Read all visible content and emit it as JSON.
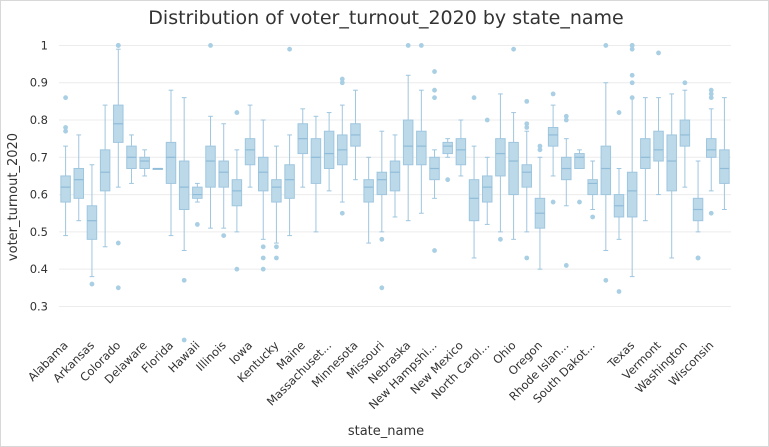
{
  "chart_data": {
    "type": "box",
    "title": "Distribution of voter_turnout_2020 by state_name",
    "xlabel": "state_name",
    "ylabel": "voter_turnout_2020",
    "ylim": [
      0.21,
      1.02
    ],
    "yticks": [
      0.3,
      0.4,
      0.5,
      0.6,
      0.7,
      0.8,
      0.9,
      1
    ],
    "ytick_labels": [
      "0.3",
      "0.4",
      "0.5",
      "0.6",
      "0.7",
      "0.8",
      "0.9",
      "1"
    ],
    "grid": true,
    "colors": {
      "box_fill": "#bcd9ea",
      "box_stroke": "#9fc6df",
      "outlier": "#a9cfe4"
    },
    "visible_tick_labels": [
      "Alabama",
      "Arkansas",
      "Colorado",
      "Delaware",
      "Florida",
      "Hawaii",
      "Illinois",
      "Iowa",
      "Kentucky",
      "Maine",
      "Massachuset...",
      "Minnesota",
      "Missouri",
      "Nebraska",
      "New Hampshi...",
      "New Mexico",
      "North Carol...",
      "Ohio",
      "Oregon",
      "Rhode Islan...",
      "South Dakot...",
      "Texas",
      "Vermont",
      "Washington",
      "Wisconsin"
    ],
    "boxes": [
      {
        "index": 0,
        "label": "Alabama",
        "min": 0.49,
        "q1": 0.58,
        "median": 0.62,
        "q3": 0.65,
        "max": 0.73,
        "outliers": [
          0.86,
          0.78,
          0.77
        ]
      },
      {
        "index": 1,
        "label": "",
        "min": 0.53,
        "q1": 0.59,
        "median": 0.64,
        "q3": 0.67,
        "max": 0.76,
        "outliers": []
      },
      {
        "index": 2,
        "label": "Arkansas",
        "min": 0.38,
        "q1": 0.48,
        "median": 0.53,
        "q3": 0.57,
        "max": 0.68,
        "outliers": [
          0.36
        ]
      },
      {
        "index": 3,
        "label": "",
        "min": 0.46,
        "q1": 0.61,
        "median": 0.66,
        "q3": 0.72,
        "max": 0.84,
        "outliers": []
      },
      {
        "index": 4,
        "label": "Colorado",
        "min": 0.62,
        "q1": 0.74,
        "median": 0.79,
        "q3": 0.84,
        "max": 0.99,
        "outliers": [
          1.0,
          1.0,
          0.47,
          0.35
        ]
      },
      {
        "index": 5,
        "label": "",
        "min": 0.63,
        "q1": 0.67,
        "median": 0.7,
        "q3": 0.73,
        "max": 0.76,
        "outliers": []
      },
      {
        "index": 6,
        "label": "Delaware",
        "min": 0.65,
        "q1": 0.67,
        "median": 0.69,
        "q3": 0.7,
        "max": 0.72,
        "outliers": []
      },
      {
        "index": 7,
        "label": "",
        "min": 0.67,
        "q1": 0.67,
        "median": 0.67,
        "q3": 0.67,
        "max": 0.67,
        "outliers": []
      },
      {
        "index": 8,
        "label": "Florida",
        "min": 0.49,
        "q1": 0.63,
        "median": 0.7,
        "q3": 0.74,
        "max": 0.88,
        "outliers": []
      },
      {
        "index": 9,
        "label": "",
        "min": 0.45,
        "q1": 0.56,
        "median": 0.62,
        "q3": 0.69,
        "max": 0.86,
        "outliers": [
          0.37,
          0.21
        ]
      },
      {
        "index": 10,
        "label": "Hawaii",
        "min": 0.58,
        "q1": 0.59,
        "median": 0.6,
        "q3": 0.62,
        "max": 0.63,
        "outliers": [
          0.52
        ]
      },
      {
        "index": 11,
        "label": "",
        "min": 0.51,
        "q1": 0.62,
        "median": 0.69,
        "q3": 0.73,
        "max": 0.81,
        "outliers": [
          1.0
        ]
      },
      {
        "index": 12,
        "label": "Illinois",
        "min": 0.51,
        "q1": 0.62,
        "median": 0.66,
        "q3": 0.69,
        "max": 0.79,
        "outliers": [
          0.49
        ]
      },
      {
        "index": 13,
        "label": "",
        "min": 0.5,
        "q1": 0.57,
        "median": 0.61,
        "q3": 0.64,
        "max": 0.72,
        "outliers": [
          0.82,
          0.4
        ]
      },
      {
        "index": 14,
        "label": "Iowa",
        "min": 0.62,
        "q1": 0.68,
        "median": 0.72,
        "q3": 0.75,
        "max": 0.84,
        "outliers": []
      },
      {
        "index": 15,
        "label": "",
        "min": 0.48,
        "q1": 0.61,
        "median": 0.66,
        "q3": 0.7,
        "max": 0.8,
        "outliers": [
          0.46,
          0.43,
          0.4
        ]
      },
      {
        "index": 16,
        "label": "Kentucky",
        "min": 0.47,
        "q1": 0.58,
        "median": 0.62,
        "q3": 0.64,
        "max": 0.73,
        "outliers": [
          0.46,
          0.43
        ]
      },
      {
        "index": 17,
        "label": "",
        "min": 0.49,
        "q1": 0.59,
        "median": 0.64,
        "q3": 0.68,
        "max": 0.76,
        "outliers": [
          0.99
        ]
      },
      {
        "index": 18,
        "label": "Maine",
        "min": 0.62,
        "q1": 0.71,
        "median": 0.75,
        "q3": 0.79,
        "max": 0.83,
        "outliers": []
      },
      {
        "index": 19,
        "label": "",
        "min": 0.5,
        "q1": 0.63,
        "median": 0.7,
        "q3": 0.75,
        "max": 0.81,
        "outliers": []
      },
      {
        "index": 20,
        "label": "Massachuset...",
        "min": 0.61,
        "q1": 0.67,
        "median": 0.71,
        "q3": 0.77,
        "max": 0.82,
        "outliers": []
      },
      {
        "index": 21,
        "label": "",
        "min": 0.58,
        "q1": 0.68,
        "median": 0.72,
        "q3": 0.76,
        "max": 0.84,
        "outliers": [
          0.91,
          0.9,
          0.55
        ]
      },
      {
        "index": 22,
        "label": "Minnesota",
        "min": 0.64,
        "q1": 0.73,
        "median": 0.76,
        "q3": 0.79,
        "max": 0.88,
        "outliers": []
      },
      {
        "index": 23,
        "label": "",
        "min": 0.47,
        "q1": 0.58,
        "median": 0.62,
        "q3": 0.64,
        "max": 0.7,
        "outliers": []
      },
      {
        "index": 24,
        "label": "Missouri",
        "min": 0.5,
        "q1": 0.6,
        "median": 0.64,
        "q3": 0.66,
        "max": 0.77,
        "outliers": [
          0.48,
          0.35
        ]
      },
      {
        "index": 25,
        "label": "",
        "min": 0.54,
        "q1": 0.61,
        "median": 0.66,
        "q3": 0.69,
        "max": 0.76,
        "outliers": []
      },
      {
        "index": 26,
        "label": "Nebraska",
        "min": 0.53,
        "q1": 0.68,
        "median": 0.73,
        "q3": 0.8,
        "max": 0.92,
        "outliers": [
          1.0
        ]
      },
      {
        "index": 27,
        "label": "",
        "min": 0.55,
        "q1": 0.68,
        "median": 0.73,
        "q3": 0.77,
        "max": 0.88,
        "outliers": [
          1.0
        ]
      },
      {
        "index": 28,
        "label": "New Hampshi...",
        "min": 0.59,
        "q1": 0.64,
        "median": 0.67,
        "q3": 0.7,
        "max": 0.72,
        "outliers": [
          0.93,
          0.88,
          0.86,
          0.45
        ]
      },
      {
        "index": 29,
        "label": "",
        "min": 0.7,
        "q1": 0.71,
        "median": 0.73,
        "q3": 0.74,
        "max": 0.75,
        "outliers": [
          0.64
        ]
      },
      {
        "index": 30,
        "label": "New Mexico",
        "min": 0.65,
        "q1": 0.68,
        "median": 0.72,
        "q3": 0.75,
        "max": 0.8,
        "outliers": []
      },
      {
        "index": 31,
        "label": "",
        "min": 0.43,
        "q1": 0.53,
        "median": 0.59,
        "q3": 0.64,
        "max": 0.73,
        "outliers": [
          0.86
        ]
      },
      {
        "index": 32,
        "label": "North Carol...",
        "min": 0.52,
        "q1": 0.58,
        "median": 0.62,
        "q3": 0.65,
        "max": 0.7,
        "outliers": [
          0.8
        ]
      },
      {
        "index": 33,
        "label": "",
        "min": 0.5,
        "q1": 0.65,
        "median": 0.71,
        "q3": 0.75,
        "max": 0.87,
        "outliers": [
          0.48
        ]
      },
      {
        "index": 34,
        "label": "Ohio",
        "min": 0.48,
        "q1": 0.6,
        "median": 0.69,
        "q3": 0.74,
        "max": 0.82,
        "outliers": [
          0.99
        ]
      },
      {
        "index": 35,
        "label": "",
        "min": 0.5,
        "q1": 0.62,
        "median": 0.66,
        "q3": 0.68,
        "max": 0.77,
        "outliers": [
          0.85,
          0.79,
          0.78,
          0.43
        ]
      },
      {
        "index": 36,
        "label": "Oregon",
        "min": 0.4,
        "q1": 0.51,
        "median": 0.55,
        "q3": 0.59,
        "max": 0.7,
        "outliers": [
          0.73,
          0.72
        ]
      },
      {
        "index": 37,
        "label": "",
        "min": 0.65,
        "q1": 0.73,
        "median": 0.76,
        "q3": 0.78,
        "max": 0.84,
        "outliers": [
          0.87,
          0.58
        ]
      },
      {
        "index": 38,
        "label": "Rhode Islan...",
        "min": 0.57,
        "q1": 0.64,
        "median": 0.67,
        "q3": 0.7,
        "max": 0.75,
        "outliers": [
          0.81,
          0.8,
          0.41
        ]
      },
      {
        "index": 39,
        "label": "",
        "min": 0.67,
        "q1": 0.67,
        "median": 0.7,
        "q3": 0.71,
        "max": 0.72,
        "outliers": [
          0.58
        ]
      },
      {
        "index": 40,
        "label": "South Dakot...",
        "min": 0.56,
        "q1": 0.6,
        "median": 0.63,
        "q3": 0.64,
        "max": 0.69,
        "outliers": [
          0.54
        ]
      },
      {
        "index": 41,
        "label": "",
        "min": 0.45,
        "q1": 0.6,
        "median": 0.67,
        "q3": 0.73,
        "max": 0.9,
        "outliers": [
          1.0,
          0.37
        ]
      },
      {
        "index": 42,
        "label": "",
        "min": 0.48,
        "q1": 0.54,
        "median": 0.57,
        "q3": 0.6,
        "max": 0.67,
        "outliers": [
          0.82,
          0.34
        ]
      },
      {
        "index": 43,
        "label": "Texas",
        "min": 0.38,
        "q1": 0.54,
        "median": 0.61,
        "q3": 0.66,
        "max": 0.86,
        "outliers": [
          1.0,
          1.0,
          0.99,
          0.92,
          0.9,
          0.86
        ]
      },
      {
        "index": 44,
        "label": "",
        "min": 0.53,
        "q1": 0.67,
        "median": 0.7,
        "q3": 0.75,
        "max": 0.86,
        "outliers": []
      },
      {
        "index": 45,
        "label": "Vermont",
        "min": 0.6,
        "q1": 0.69,
        "median": 0.72,
        "q3": 0.77,
        "max": 0.86,
        "outliers": [
          0.98
        ]
      },
      {
        "index": 46,
        "label": "",
        "min": 0.43,
        "q1": 0.61,
        "median": 0.69,
        "q3": 0.76,
        "max": 0.87,
        "outliers": []
      },
      {
        "index": 47,
        "label": "Washington",
        "min": 0.62,
        "q1": 0.73,
        "median": 0.76,
        "q3": 0.8,
        "max": 0.88,
        "outliers": [
          0.9
        ]
      },
      {
        "index": 48,
        "label": "",
        "min": 0.5,
        "q1": 0.53,
        "median": 0.56,
        "q3": 0.59,
        "max": 0.69,
        "outliers": [
          0.43,
          0.43
        ]
      },
      {
        "index": 49,
        "label": "Wisconsin",
        "min": 0.61,
        "q1": 0.7,
        "median": 0.72,
        "q3": 0.75,
        "max": 0.83,
        "outliers": [
          0.88,
          0.87,
          0.86,
          0.55
        ]
      },
      {
        "index": 50,
        "label": "",
        "min": 0.56,
        "q1": 0.63,
        "median": 0.67,
        "q3": 0.72,
        "max": 0.86,
        "outliers": []
      }
    ]
  }
}
